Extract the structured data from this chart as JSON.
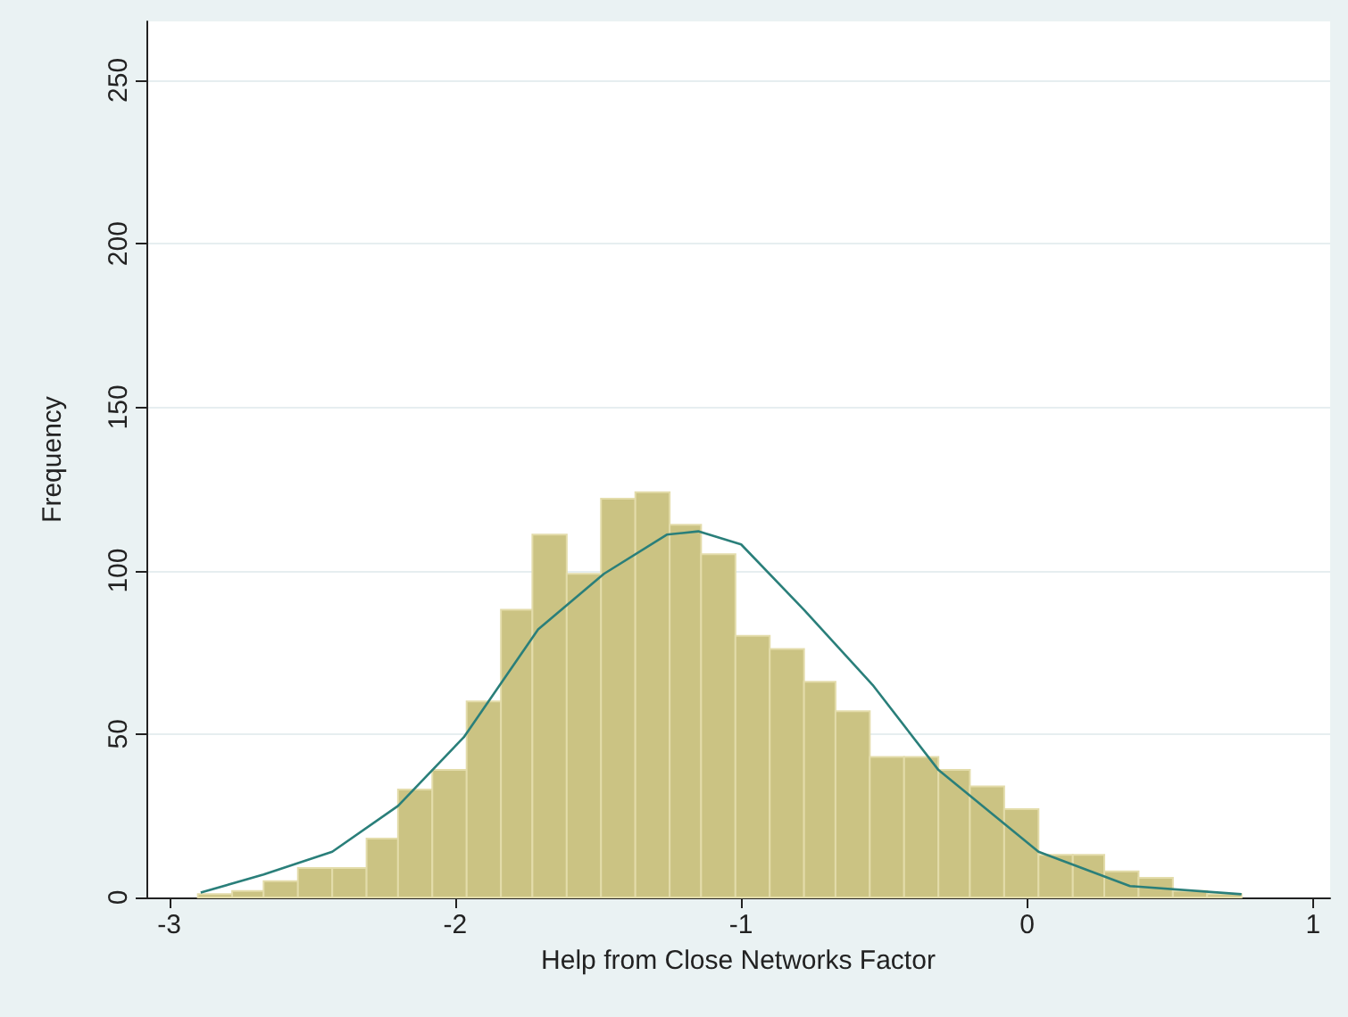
{
  "chart_data": {
    "type": "histogram",
    "xlabel": "Help from Close Networks Factor",
    "ylabel": "Frequency",
    "bins": [
      -2.9,
      -2.78,
      -2.67,
      -2.55,
      -2.43,
      -2.31,
      -2.2,
      -2.08,
      -1.96,
      -1.84,
      -1.73,
      -1.61,
      -1.49,
      -1.37,
      -1.25,
      -1.14,
      -1.02,
      -0.9,
      -0.78,
      -0.67,
      -0.55,
      -0.43,
      -0.31,
      -0.2,
      -0.08,
      0.04,
      0.16,
      0.27,
      0.39,
      0.51,
      0.63,
      0.75
    ],
    "series": [
      {
        "color": "#cbc383",
        "values": [
          1,
          2,
          5,
          9,
          9,
          18,
          33,
          39,
          60,
          88,
          111,
          99,
          122,
          124,
          114,
          105,
          80,
          76,
          66,
          57,
          43,
          43,
          39,
          34,
          27,
          13,
          13,
          8,
          6,
          2,
          1
        ]
      },
      {
        "type": "line",
        "color": "#2a7f7a",
        "x": [
          -2.89,
          -2.67,
          -2.43,
          -2.2,
          -1.97,
          -1.71,
          -1.48,
          -1.26,
          -1.15,
          -1.0,
          -0.78,
          -0.54,
          -0.31,
          0.04,
          0.36,
          0.75
        ],
        "values": [
          1.5,
          7,
          14,
          28,
          49,
          82,
          99,
          111,
          112,
          108,
          88,
          65,
          39,
          14,
          3.5,
          1
        ]
      }
    ],
    "xlim": [
      -3.08,
      1.06
    ],
    "xticks": [
      -3,
      -2,
      -1,
      0,
      1
    ],
    "ylim": [
      0,
      268
    ],
    "yticks": [
      0,
      50,
      100,
      150,
      200,
      250
    ],
    "grid": "y"
  }
}
